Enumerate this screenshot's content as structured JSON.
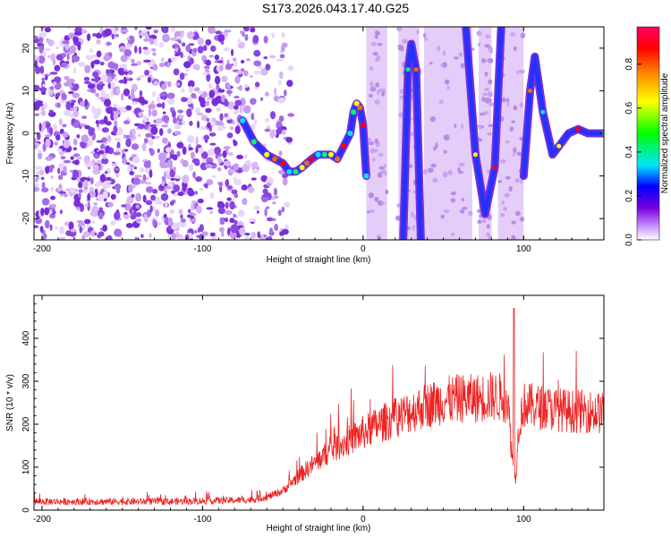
{
  "figure": {
    "title": "S173.2026.043.17.40.G25"
  },
  "chart_data": [
    {
      "type": "heatmap",
      "title": "",
      "xlabel": "Height of straight line (km)",
      "ylabel": "Frequency (Hz)",
      "xlim": [
        -205,
        150
      ],
      "ylim": [
        -25,
        25
      ],
      "xticks": [
        -200,
        -100,
        0,
        100
      ],
      "yticks": [
        -20,
        -10,
        0,
        10,
        20
      ],
      "colorbar": {
        "label": "Normalized spectral amplitude",
        "range": [
          0,
          0.97
        ],
        "ticks": [
          0.0,
          0.2,
          0.4,
          0.6,
          0.8
        ],
        "tick_labels": [
          "0.0",
          "0.2",
          "0.4",
          "0.6",
          "0.8"
        ],
        "colors": [
          "#ffffff",
          "#cc99ff",
          "#7700dd",
          "#0000ff",
          "#00e5ff",
          "#00ff00",
          "#ffff00",
          "#ff8800",
          "#ff0000",
          "#ff0066"
        ]
      },
      "noise_region": {
        "x": [
          -205,
          -60
        ],
        "y": [
          -25,
          25
        ]
      },
      "trace": {
        "name": "frequency ridge",
        "x": [
          -75,
          -68,
          -60,
          -55,
          -50,
          -46,
          -42,
          -38,
          -35,
          -32,
          -28,
          -24,
          -20,
          -16,
          -12,
          -8,
          -6,
          -4,
          -2,
          0,
          2
        ],
        "y": [
          3,
          -2,
          -5,
          -6,
          -7,
          -9,
          -9,
          -8,
          -7,
          -6,
          -5,
          -5,
          -5,
          -6,
          -3,
          0,
          5,
          7,
          6,
          2,
          -10
        ]
      },
      "bands": [
        {
          "x": [
            2,
            15
          ],
          "y": [
            -25,
            25
          ]
        },
        {
          "x": [
            22,
            35
          ],
          "y": [
            -25,
            25
          ]
        },
        {
          "x": [
            38,
            68
          ],
          "y": [
            -25,
            25
          ]
        },
        {
          "x": [
            72,
            80
          ],
          "y": [
            -25,
            25
          ]
        },
        {
          "x": [
            84,
            100
          ],
          "y": [
            -25,
            25
          ]
        }
      ],
      "arcs": [
        {
          "x": [
            25,
            28,
            30,
            33,
            36
          ],
          "y": [
            -25,
            15,
            21,
            15,
            -25
          ]
        },
        {
          "x": [
            64,
            70,
            76,
            82,
            86
          ],
          "y": [
            25,
            -5,
            -19,
            -8,
            25
          ]
        },
        {
          "x": [
            100,
            104,
            107,
            112,
            118,
            122,
            128,
            134,
            140,
            150
          ],
          "y": [
            -10,
            10,
            18,
            5,
            -5,
            -3,
            0,
            1,
            0,
            0
          ]
        }
      ]
    },
    {
      "type": "line",
      "title": "",
      "xlabel": "Height of straight line (km)",
      "ylabel": "SNR (10 * v/v)",
      "xlim": [
        -205,
        150
      ],
      "ylim": [
        0,
        500
      ],
      "xticks": [
        -200,
        -100,
        0,
        100
      ],
      "yticks": [
        0,
        100,
        200,
        300,
        400
      ],
      "series": [
        {
          "name": "SNR",
          "color": "#ee2222",
          "x": [
            -205,
            -180,
            -150,
            -120,
            -90,
            -70,
            -60,
            -50,
            -40,
            -30,
            -20,
            -10,
            0,
            10,
            20,
            30,
            40,
            50,
            60,
            70,
            80,
            90,
            93,
            95,
            97,
            100,
            110,
            120,
            130,
            140,
            150
          ],
          "y": [
            20,
            20,
            20,
            20,
            22,
            24,
            30,
            45,
            80,
            110,
            140,
            160,
            180,
            200,
            215,
            230,
            245,
            255,
            260,
            260,
            265,
            260,
            120,
            70,
            200,
            245,
            240,
            235,
            230,
            230,
            225
          ]
        }
      ]
    }
  ]
}
